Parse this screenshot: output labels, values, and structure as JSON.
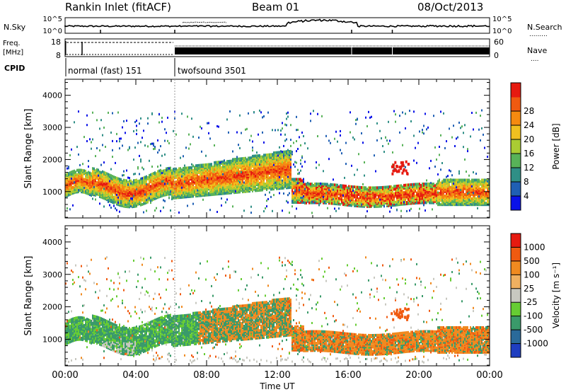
{
  "header": {
    "station": "Rankin Inlet (fitACF)",
    "beam": "Beam 01",
    "date": "08/Oct/2013"
  },
  "status_panel": {
    "nsky_label": "N.Sky",
    "nsearch_label": "N.Search",
    "freq_label_line1": "Freq.",
    "freq_label_line2": "[MHz]",
    "nave_label": "Nave",
    "cpid_label": "CPID",
    "noise_ticks_left": [
      "10^5",
      "10^0"
    ],
    "noise_ticks_right": [
      "10^5",
      "10^0"
    ],
    "freq_ticks_left": [
      "18",
      "8"
    ],
    "nave_ticks_right": [
      "60",
      "0"
    ],
    "cpid_segments": [
      {
        "label": "normal (fast) 151",
        "start_hour": 0.0,
        "end_hour": 6.2
      },
      {
        "label": "twofsound 3501",
        "start_hour": 6.2,
        "end_hour": 24.0
      }
    ]
  },
  "chart_data": [
    {
      "type": "heatmap",
      "panel": "power",
      "ylabel": "Slant Range [km]",
      "xlabel": "",
      "xlim": [
        0,
        24
      ],
      "ylim": [
        180,
        4500
      ],
      "y_ticks": [
        "1000",
        "2000",
        "3000",
        "4000"
      ],
      "colorbar": {
        "label": "Power [dB]",
        "ticks": [
          "4",
          "8",
          "12",
          "16",
          "20",
          "24",
          "28"
        ],
        "colors": [
          "#0a12e8",
          "#1f5fb4",
          "#2f8f86",
          "#58b258",
          "#aacc33",
          "#f0c020",
          "#f58a10",
          "#f05a10",
          "#e61a10"
        ]
      },
      "ground": {
        "start_hour": 0.0,
        "end_hour": 24.0
      }
    },
    {
      "type": "heatmap",
      "panel": "velocity",
      "ylabel": "Slant Range [km]",
      "xlabel": "Time UT",
      "xlim": [
        0,
        24
      ],
      "ylim": [
        180,
        4500
      ],
      "x_ticks": [
        "00:00",
        "04:00",
        "08:00",
        "12:00",
        "16:00",
        "20:00",
        "00:00"
      ],
      "y_ticks": [
        "1000",
        "2000",
        "3000",
        "4000"
      ],
      "colorbar": {
        "label": "Velocity [m s⁻¹]",
        "ticks": [
          "1000",
          "500",
          "100",
          "25",
          "-25",
          "-100",
          "-500",
          "-1000"
        ],
        "colors": [
          "#1f3ec0",
          "#2a6a9a",
          "#3a9a6a",
          "#66cc33",
          "#c8c8c0",
          "#f0b060",
          "#f08a20",
          "#f05a10",
          "#e61a10"
        ]
      }
    }
  ]
}
